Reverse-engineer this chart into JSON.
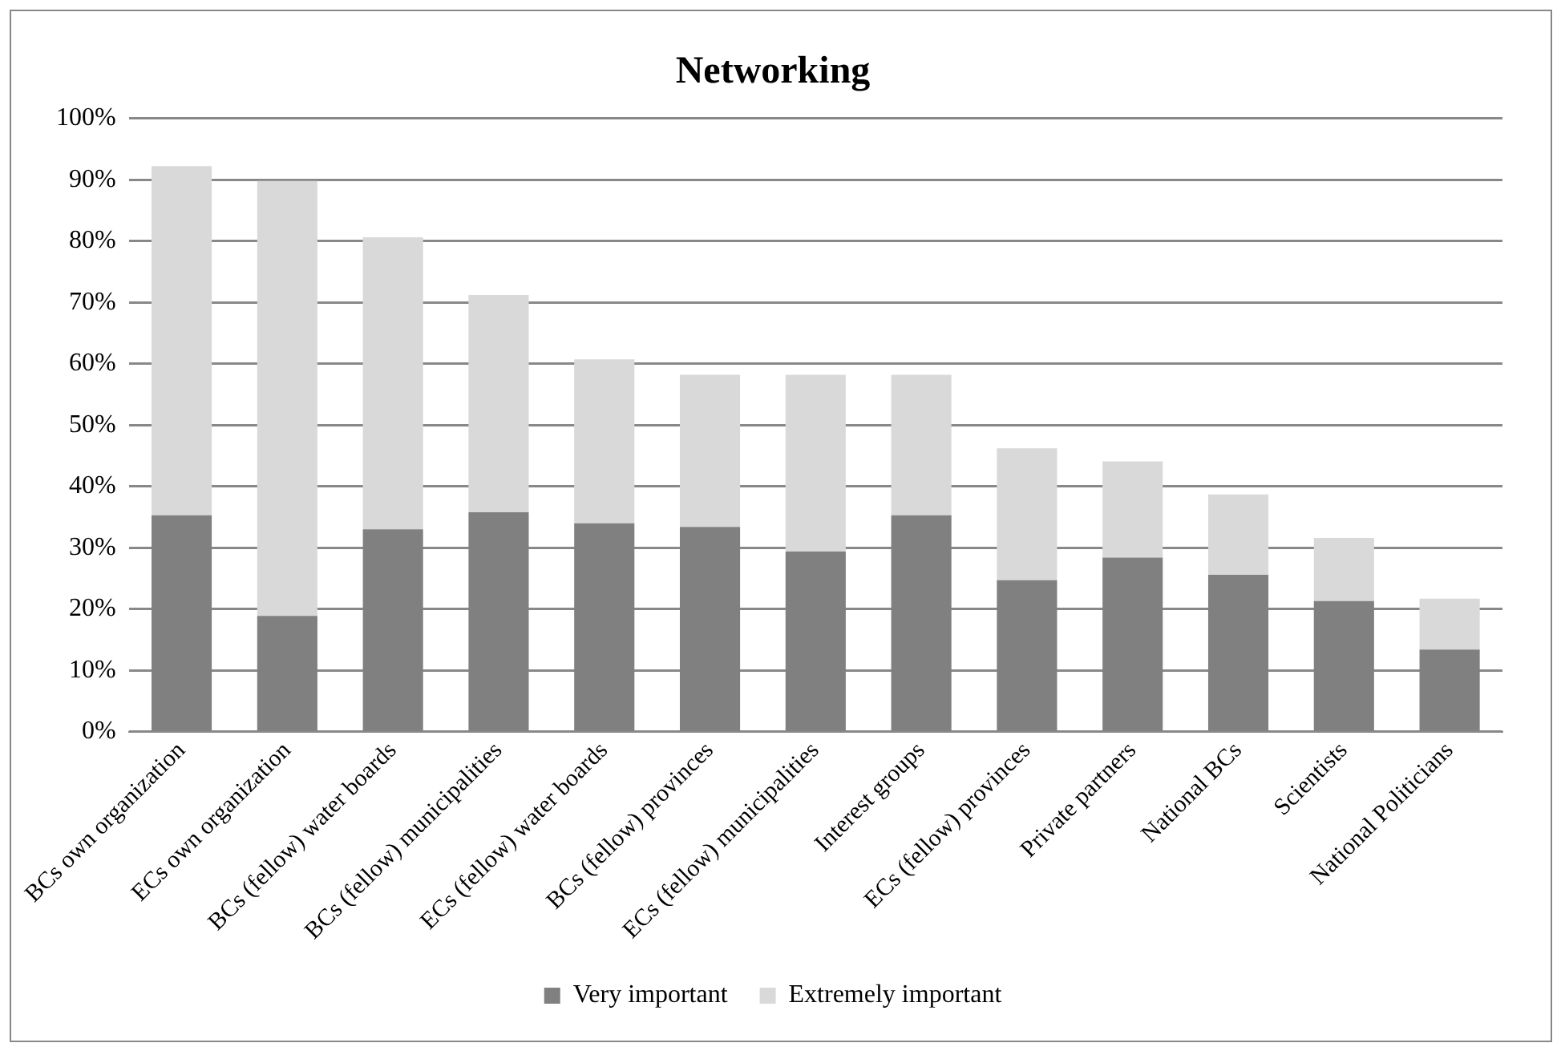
{
  "chart_data": {
    "type": "bar",
    "title": "Networking",
    "stacked": true,
    "grid": "y",
    "legend": "bottom",
    "categories": [
      "BCs own organization",
      "ECs own organization",
      "BCs (fellow) water boards",
      "BCs (fellow) municipalities",
      "ECs (fellow) water boards",
      "BCs (fellow) provinces",
      "ECs (fellow) municipalities",
      "Interest groups",
      "ECs (fellow) provinces",
      "Private partners",
      "National BCs",
      "Scientists",
      "National Politicians"
    ],
    "series": [
      {
        "name": "Very important",
        "color": "#808080",
        "values": [
          35.3,
          18.9,
          33.0,
          35.8,
          34.0,
          33.4,
          29.4,
          35.3,
          24.7,
          28.4,
          25.6,
          21.3,
          13.4
        ]
      },
      {
        "name": "Extremely important",
        "color": "#d9d9d9",
        "values": [
          56.9,
          70.9,
          47.6,
          35.4,
          26.7,
          24.8,
          28.8,
          22.9,
          21.5,
          15.7,
          13.1,
          10.3,
          8.3
        ]
      }
    ],
    "ylim": [
      0,
      100
    ],
    "yticks": [
      {
        "value": 0,
        "label": "0%"
      },
      {
        "value": 10,
        "label": "10%"
      },
      {
        "value": 20,
        "label": "20%"
      },
      {
        "value": 30,
        "label": "30%"
      },
      {
        "value": 40,
        "label": "40%"
      },
      {
        "value": 50,
        "label": "50%"
      },
      {
        "value": 60,
        "label": "60%"
      },
      {
        "value": 70,
        "label": "70%"
      },
      {
        "value": 80,
        "label": "80%"
      },
      {
        "value": 90,
        "label": "90%"
      },
      {
        "value": 100,
        "label": "100%"
      }
    ]
  }
}
